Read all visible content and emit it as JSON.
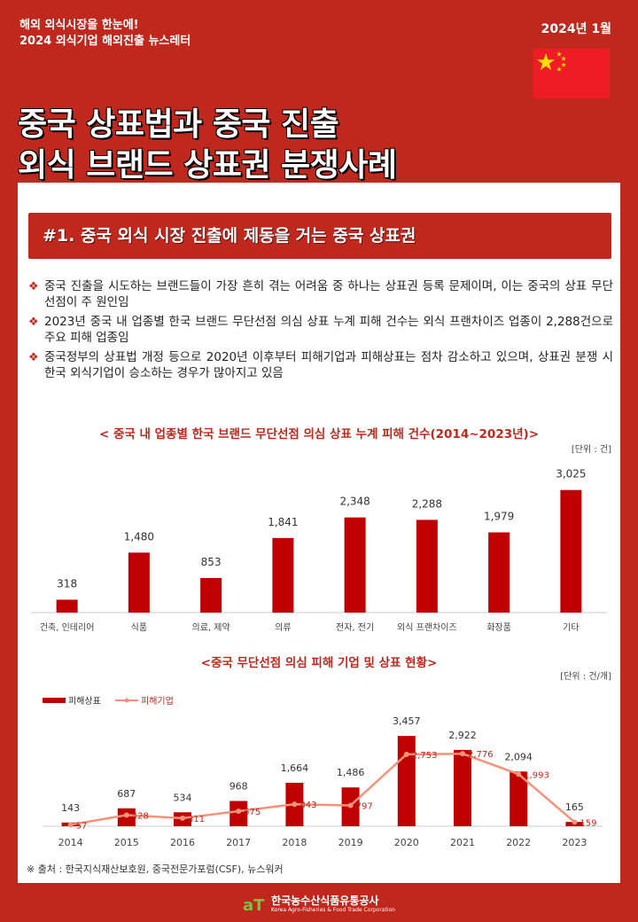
{
  "header": {
    "tagline": "해외 외식시장을 한눈에!",
    "subtitle": "2024 외식기업 해외진출 뉴스레터",
    "date": "2024년 1월",
    "title_line1": "중국 상표법과 중국 진출",
    "title_line2": "외식 브랜드 상표권 분쟁사례"
  },
  "section": {
    "heading": "#1. 중국 외식 시장 진출에 제동을 거는 중국 상표권",
    "bullets": [
      "중국 진출을 시도하는 브랜드들이 가장 흔히 겪는 어려움 중 하나는 상표권 등록 문제이며, 이는 중국의 상표 무단선점이 주 원인임",
      "2023년 중국 내 업종별 한국 브랜드 무단선점 의심 상표 누계 피해 건수는 외식 프랜차이즈 업종이 2,288건으로 주요 피해 업종임",
      "중국정부의 상표법 개정 등으로 2020년 이후부터 피해기업과 피해상표는 점차 감소하고 있으며, 상표권 분쟁 시 한국 외식기업이 승소하는 경우가 많아지고 있음"
    ],
    "bullet_icon": "diamond-bullet-icon"
  },
  "chart_data": [
    {
      "type": "bar",
      "title": "< 중국 내 업종별 한국 브랜드 무단선점 의심 상표 누계 피해 건수(2014~2023년)>",
      "unit": "[단위 : 건]",
      "categories": [
        "건축, 인테리어",
        "식품",
        "의료, 제약",
        "의류",
        "전자, 전기",
        "외식 프랜차이즈",
        "화장품",
        "기타"
      ],
      "values": [
        318,
        1480,
        853,
        1841,
        2348,
        2288,
        1979,
        3025
      ],
      "value_labels": [
        "318",
        "1,480",
        "853",
        "1,841",
        "2,348",
        "2,288",
        "1,979",
        "3,025"
      ],
      "ylim": [
        0,
        3500
      ],
      "color": "#c00000"
    },
    {
      "type": "bar+line",
      "title": "<중국 무단선점 의심 피해 기업 및 상표 현황>",
      "unit": "[단위 : 건/개]",
      "categories": [
        "2014",
        "2015",
        "2016",
        "2017",
        "2018",
        "2019",
        "2020",
        "2021",
        "2022",
        "2023"
      ],
      "series": [
        {
          "name": "피해상표",
          "type": "bar",
          "color": "#c00000",
          "values": [
            143,
            687,
            534,
            968,
            1664,
            1486,
            3457,
            2922,
            2094,
            165
          ],
          "value_labels": [
            "143",
            "687",
            "534",
            "968",
            "1,664",
            "1,486",
            "3,457",
            "2,922",
            "2,094",
            "165"
          ]
        },
        {
          "name": "피해기업",
          "type": "line",
          "color": "#f4927a",
          "values": [
            57,
            428,
            311,
            575,
            843,
            797,
            2753,
            2776,
            1993,
            159
          ],
          "value_labels": [
            "57",
            "428",
            "311",
            "575",
            "843",
            "797",
            "2,753",
            "2,776",
            "1,993",
            "159"
          ]
        }
      ],
      "ylim": [
        0,
        3800
      ]
    }
  ],
  "source": "※ 출처 : 한국지식재산보호원, 중국전문가포럼(CSF), 뉴스워커",
  "footer": {
    "logo_mark": "aT",
    "org_name": "한국농수산식품유통공사",
    "org_name_en": "Korea Agro-Fisheries & Food Trade Corporation"
  }
}
